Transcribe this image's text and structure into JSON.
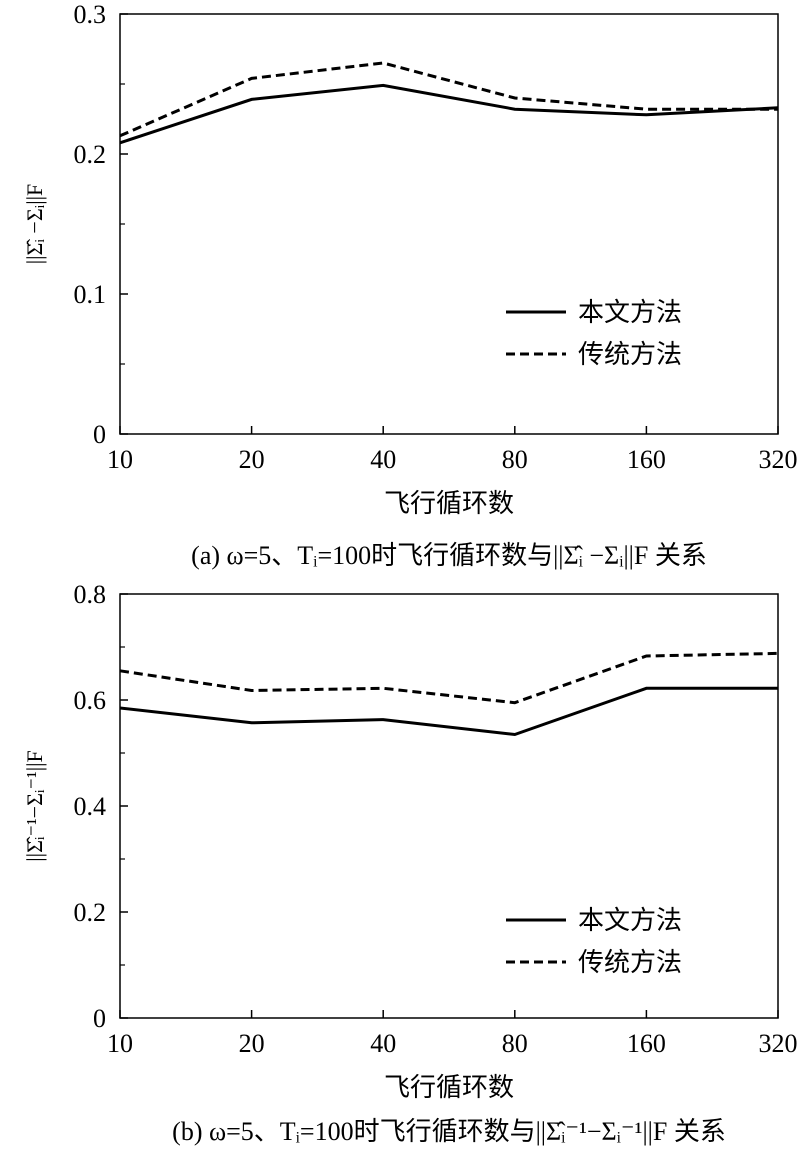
{
  "chart_data": [
    {
      "type": "line",
      "panel": "a",
      "categories": [
        "10",
        "20",
        "40",
        "80",
        "160",
        "320"
      ],
      "ylim": [
        0,
        0.3
      ],
      "yticks": [
        "0",
        "0.1",
        "0.2",
        "0.3"
      ],
      "xlabel": "飞行循环数",
      "ylabel": "||Σ̂ᵢ −Σᵢ||F",
      "caption": "(a) ω=5、Tᵢ=100时飞行循环数与||Σ̂ᵢ −Σᵢ||F 关系",
      "legend_position": "lower-right",
      "grid": false,
      "series": [
        {
          "name": "本文方法",
          "style": "solid",
          "values": [
            0.208,
            0.239,
            0.249,
            0.232,
            0.228,
            0.233
          ]
        },
        {
          "name": "传统方法",
          "style": "dashed",
          "values": [
            0.213,
            0.254,
            0.265,
            0.24,
            0.232,
            0.232
          ]
        }
      ]
    },
    {
      "type": "line",
      "panel": "b",
      "categories": [
        "10",
        "20",
        "40",
        "80",
        "160",
        "320"
      ],
      "ylim": [
        0,
        0.8
      ],
      "yticks": [
        "0",
        "0.2",
        "0.4",
        "0.6",
        "0.8"
      ],
      "xlabel": "飞行循环数",
      "ylabel": "||Σ̂ᵢ⁻¹−Σᵢ⁻¹||F",
      "caption": "(b) ω=5、Tᵢ=100时飞行循环数与||Σ̂ᵢ⁻¹−Σᵢ⁻¹||F 关系",
      "legend_position": "lower-right",
      "grid": false,
      "series": [
        {
          "name": "本文方法",
          "style": "solid",
          "values": [
            0.585,
            0.557,
            0.563,
            0.535,
            0.622,
            0.622
          ]
        },
        {
          "name": "传统方法",
          "style": "dashed",
          "values": [
            0.655,
            0.618,
            0.622,
            0.595,
            0.683,
            0.688
          ]
        }
      ]
    }
  ]
}
